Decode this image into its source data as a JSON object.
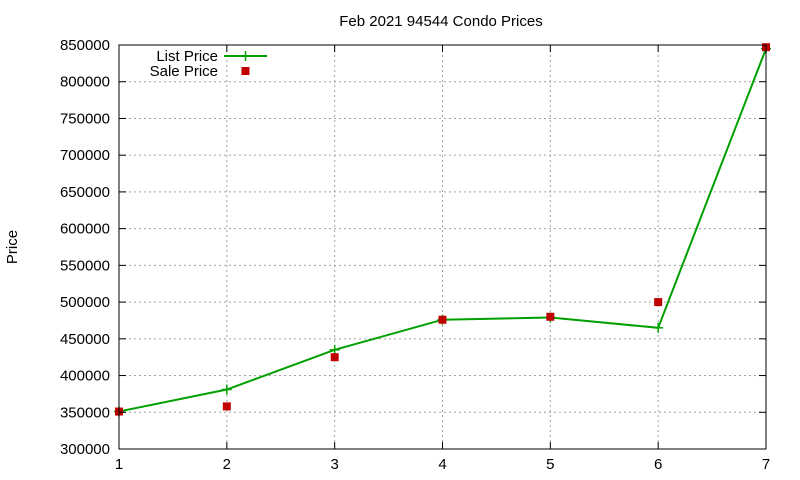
{
  "chart_data": {
    "type": "line",
    "title": "Feb 2021 94544 Condo Prices",
    "xlabel": "",
    "ylabel": "Price",
    "x": [
      1,
      2,
      3,
      4,
      5,
      6,
      7
    ],
    "xlim": [
      1,
      7
    ],
    "ylim": [
      300000,
      850000
    ],
    "x_ticks": [
      1,
      2,
      3,
      4,
      5,
      6,
      7
    ],
    "y_ticks": [
      300000,
      350000,
      400000,
      450000,
      500000,
      550000,
      600000,
      650000,
      700000,
      750000,
      800000,
      850000
    ],
    "x_tick_labels": [
      "1",
      "2",
      "3",
      "4",
      "5",
      "6",
      "7"
    ],
    "y_tick_labels": [
      "300000",
      "350000",
      "400000",
      "450000",
      "500000",
      "550000",
      "600000",
      "650000",
      "700000",
      "750000",
      "800000",
      "850000"
    ],
    "grid": true,
    "legend_position": "top-left",
    "series": [
      {
        "name": "List Price",
        "kind": "line",
        "marker": "plus",
        "color": "#00a000",
        "values": [
          351000,
          381000,
          435000,
          476000,
          479000,
          465000,
          845000
        ]
      },
      {
        "name": "Sale Price",
        "kind": "scatter",
        "marker": "square",
        "color": "#c00000",
        "values": [
          351000,
          358000,
          425000,
          476000,
          480000,
          500000,
          847000
        ]
      }
    ]
  }
}
